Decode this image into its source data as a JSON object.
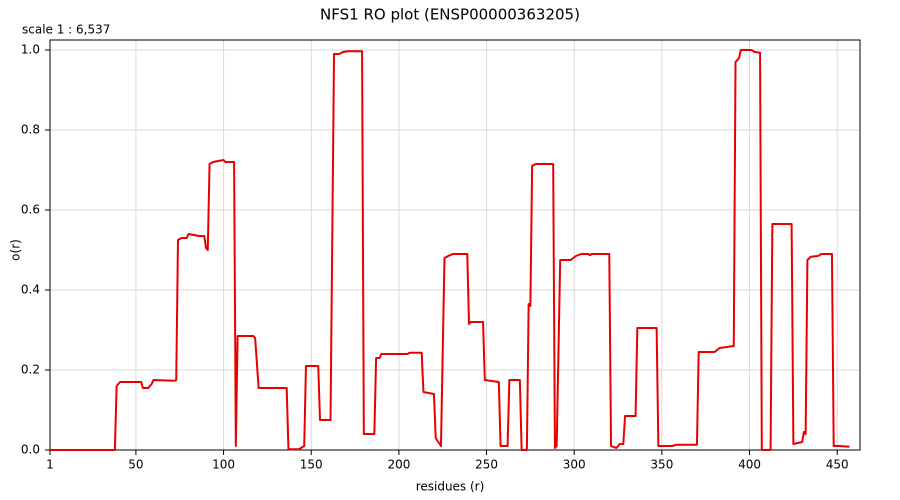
{
  "chart_data": {
    "type": "line",
    "title": "NFS1 RO plot (ENSP00000363205)",
    "annotation": "scale 1 : 6,537",
    "x_label": "residues (r)",
    "y_label": "o(r)",
    "color": "#e80000",
    "grid": true,
    "xlim": [
      1,
      463
    ],
    "xticks": [
      1,
      50,
      100,
      150,
      200,
      250,
      300,
      350,
      400,
      450
    ],
    "ylim": [
      0,
      1.025
    ],
    "yticks": [
      {
        "value": 0,
        "label": "0.0"
      },
      0.2,
      0.4,
      0.6,
      0.8,
      {
        "value": 1,
        "label": "1.0"
      }
    ],
    "x": [
      1,
      38,
      39,
      41,
      50,
      53,
      54,
      57,
      59,
      60,
      72,
      73,
      74,
      76,
      79,
      80,
      86,
      89,
      90,
      91,
      92,
      94,
      100,
      101,
      104,
      106,
      107,
      108,
      117,
      118,
      120,
      135,
      136,
      137,
      143,
      146,
      147,
      150,
      154,
      155,
      161,
      163,
      166,
      168,
      171,
      179,
      180,
      186,
      187,
      189,
      190,
      205,
      206,
      213,
      214,
      220,
      221,
      224,
      226,
      229,
      231,
      239,
      240,
      241,
      248,
      249,
      257,
      258,
      262,
      263,
      269,
      270,
      273,
      274,
      275,
      276,
      278,
      288,
      289,
      290,
      292,
      298,
      301,
      304,
      308,
      309,
      310,
      320,
      321,
      324,
      326,
      328,
      329,
      335,
      336,
      347,
      348,
      356,
      358,
      370,
      371,
      380,
      383,
      391,
      392,
      394,
      395,
      401,
      403,
      406,
      407,
      412,
      413,
      424,
      425,
      430,
      431,
      432,
      433,
      435,
      439,
      441,
      447,
      448,
      451,
      457
    ],
    "values": [
      0,
      0,
      0.16,
      0.17,
      0.17,
      0.17,
      0.155,
      0.155,
      0.165,
      0.175,
      0.173,
      0.175,
      0.525,
      0.53,
      0.53,
      0.54,
      0.535,
      0.535,
      0.505,
      0.5,
      0.715,
      0.72,
      0.725,
      0.72,
      0.72,
      0.72,
      0.01,
      0.285,
      0.285,
      0.28,
      0.155,
      0.155,
      0.155,
      0.002,
      0.002,
      0.01,
      0.21,
      0.21,
      0.21,
      0.075,
      0.075,
      0.99,
      0.99,
      0.995,
      0.997,
      0.997,
      0.04,
      0.04,
      0.23,
      0.23,
      0.24,
      0.24,
      0.243,
      0.243,
      0.145,
      0.14,
      0.03,
      0.01,
      0.48,
      0.487,
      0.49,
      0.49,
      0.315,
      0.32,
      0.32,
      0.175,
      0.17,
      0.01,
      0.01,
      0.175,
      0.175,
      0,
      0,
      0.365,
      0.36,
      0.71,
      0.715,
      0.715,
      0.005,
      0.01,
      0.475,
      0.475,
      0.485,
      0.49,
      0.49,
      0.487,
      0.49,
      0.49,
      0.01,
      0.005,
      0.015,
      0.015,
      0.085,
      0.085,
      0.305,
      0.305,
      0.01,
      0.01,
      0.013,
      0.013,
      0.245,
      0.245,
      0.255,
      0.26,
      0.97,
      0.98,
      1,
      1,
      0.995,
      0.993,
      0,
      0,
      0.565,
      0.565,
      0.015,
      0.02,
      0.045,
      0.04,
      0.475,
      0.483,
      0.485,
      0.49,
      0.49,
      0.01,
      0.01,
      0.008
    ]
  }
}
